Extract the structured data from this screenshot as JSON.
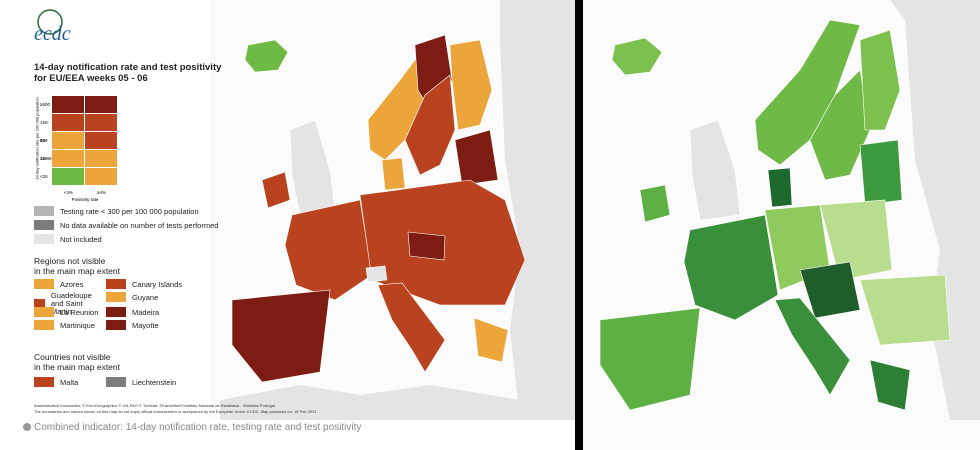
{
  "left_panel": {
    "logo": "ecdc",
    "title": [
      "14-day notification rate and test positivity",
      "for EU/EEA weeks 05 - 06"
    ],
    "matrix": {
      "y_axis_label": "14-day notification rate per 100 000 population",
      "y_ticks": [
        "≥500",
        "150-499",
        "50-149",
        "25-49",
        "<25"
      ],
      "x_ticks": [
        "<4%",
        "≥4%"
      ],
      "x_axis_label": "Positivity rate"
    },
    "legend": [
      "Testing rate < 300 per 100 000 population",
      "No data available on number of tests performed",
      "Not included"
    ],
    "regions": {
      "heading": [
        "Regions not visible",
        "in the main map extent"
      ],
      "items": [
        "Azores",
        "Canary Islands",
        "Guadeloupe and Saint Martin",
        "Guyane",
        "La Reunion",
        "Madeira",
        "Martinique",
        "Mayotte"
      ]
    },
    "countries": {
      "heading": [
        "Countries not visible",
        "in the main map extent"
      ],
      "items": [
        "Malta",
        "Liechtenstein"
      ]
    },
    "footnote": [
      "Administrative boundaries: © EuroGeographics © UN-FAO © Turkstat; ©Kartverket©Instituto Nacional de Estatística - Statistics Portugal.",
      "The boundaries and names shown on this map do not imply official endorsement or acceptance by the European Union. ECDC. Map produced on: 18 Feb 2021"
    ]
  },
  "caption": "Combined indicator: 14-day notification rate, testing rate and test positivity"
}
